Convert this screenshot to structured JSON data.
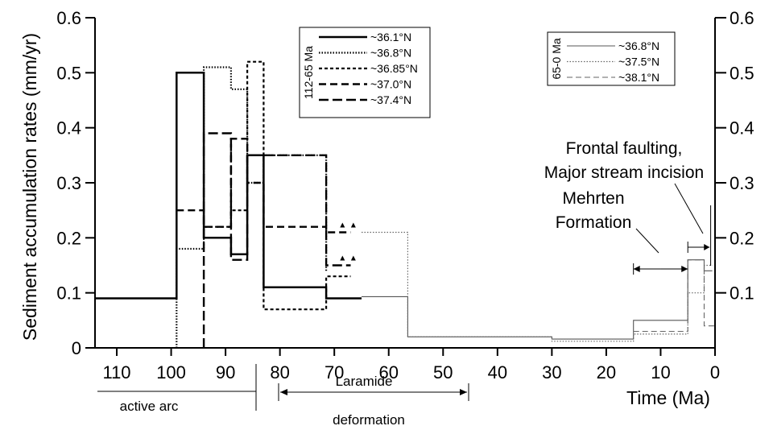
{
  "chart_data": {
    "type": "line",
    "subtype": "step",
    "xlabel": "Time (Ma)",
    "ylabel": "Sediment accumulation rates (mm/yr)",
    "xlim": [
      114,
      0
    ],
    "ylim": [
      0,
      0.6
    ],
    "x_reversed": true,
    "xticks": [
      110,
      100,
      90,
      80,
      70,
      60,
      50,
      40,
      30,
      20,
      10,
      0
    ],
    "yticks_left": [
      "0",
      "0.1",
      "0.2",
      "0.3",
      "0.4",
      "0.5",
      "0.6"
    ],
    "yticks_right": [
      "0.1",
      "0.2",
      "0.3",
      "0.4",
      "0.5",
      "0.6"
    ],
    "legend_112_65": {
      "title": "112-65 Ma",
      "position": "top-center",
      "entries": [
        "~36.1°N",
        "~36.8°N",
        "~36.85°N",
        "~37.0°N",
        "~37.4°N"
      ]
    },
    "legend_65_0": {
      "title": "65-0 Ma",
      "position": "top-right",
      "entries": [
        "~36.8°N",
        "~37.5°N",
        "~38.1°N"
      ]
    },
    "series": [
      {
        "name": "~36.1°N",
        "style": "solid-thick",
        "points": [
          [
            114,
            0.09
          ],
          [
            99,
            0.09
          ],
          [
            99,
            0.5
          ],
          [
            94,
            0.5
          ],
          [
            94,
            0.2
          ],
          [
            89,
            0.2
          ],
          [
            89,
            0.17
          ],
          [
            86,
            0.17
          ],
          [
            86,
            0.35
          ],
          [
            83,
            0.35
          ],
          [
            83,
            0.11
          ],
          [
            71.5,
            0.11
          ],
          [
            71.5,
            0.09
          ],
          [
            65,
            0.09
          ]
        ]
      },
      {
        "name": "~36.8°N",
        "style": "dotted",
        "points": [
          [
            99,
            0
          ],
          [
            99,
            0.18
          ],
          [
            94,
            0.18
          ],
          [
            94,
            0.51
          ],
          [
            89,
            0.51
          ],
          [
            89,
            0.47
          ],
          [
            86,
            0.47
          ],
          [
            86,
            0.3
          ],
          [
            83,
            0.3
          ],
          [
            83,
            0.35
          ],
          [
            71.5,
            0.35
          ],
          [
            71.5,
            0.14
          ]
        ]
      },
      {
        "name": "~36.85°N",
        "style": "short-dash",
        "points": [
          [
            94,
            0.22
          ],
          [
            89,
            0.22
          ],
          [
            89,
            0.25
          ],
          [
            86,
            0.25
          ],
          [
            86,
            0.52
          ],
          [
            83,
            0.52
          ],
          [
            83,
            0.07
          ],
          [
            71.5,
            0.07
          ],
          [
            71.5,
            0.13
          ],
          [
            67,
            0.13
          ]
        ]
      },
      {
        "name": "~37.0°N",
        "style": "dash",
        "points": [
          [
            99,
            0.25
          ],
          [
            94,
            0.25
          ],
          [
            94,
            0.22
          ],
          [
            89,
            0.22
          ],
          [
            89,
            0.38
          ],
          [
            86,
            0.38
          ],
          [
            86,
            0.3
          ],
          [
            83,
            0.3
          ],
          [
            83,
            0.22
          ],
          [
            71.5,
            0.22
          ],
          [
            71.5,
            0.21
          ],
          [
            67,
            0.21
          ]
        ]
      },
      {
        "name": "~37.4°N",
        "style": "long-dash",
        "points": [
          [
            94,
            0
          ],
          [
            94,
            0.39
          ],
          [
            89,
            0.39
          ],
          [
            89,
            0.16
          ],
          [
            86,
            0.16
          ],
          [
            86,
            0.35
          ],
          [
            83,
            0.35
          ],
          [
            71.5,
            0.35
          ],
          [
            71.5,
            0.15
          ],
          [
            67,
            0.15
          ]
        ]
      },
      {
        "name": "~36.8°N",
        "style": "thin-solid",
        "points": [
          [
            65,
            0.093
          ],
          [
            56.5,
            0.093
          ],
          [
            56.5,
            0.02
          ],
          [
            30,
            0.02
          ],
          [
            30,
            0.016
          ],
          [
            15,
            0.016
          ],
          [
            15,
            0.05
          ],
          [
            5,
            0.05
          ],
          [
            5,
            0.16
          ],
          [
            2,
            0.16
          ],
          [
            2,
            0.14
          ],
          [
            0.5,
            0.14
          ]
        ]
      },
      {
        "name": "~37.5°N",
        "style": "thin-dotted",
        "points": [
          [
            65,
            0.21
          ],
          [
            56.5,
            0.21
          ],
          [
            56.5,
            0.02
          ],
          [
            30,
            0.02
          ],
          [
            30,
            0.012
          ],
          [
            15,
            0.012
          ],
          [
            15,
            0.025
          ],
          [
            5,
            0.025
          ],
          [
            5,
            0.1
          ],
          [
            2,
            0.1
          ],
          [
            2,
            0.15
          ],
          [
            0.5,
            0.15
          ]
        ]
      },
      {
        "name": "~38.1°N",
        "style": "thin-dash",
        "points": [
          [
            15,
            0.03
          ],
          [
            5,
            0.03
          ],
          [
            5,
            0.16
          ],
          [
            2,
            0.16
          ],
          [
            2,
            0.04
          ],
          [
            0,
            0.04
          ]
        ]
      }
    ],
    "annotations": {
      "frontal": [
        "Frontal faulting,",
        "Major stream incision"
      ],
      "mehrten": [
        "Mehrten",
        "Formation"
      ],
      "active_arc": "active arc",
      "laramide": [
        "Laramide",
        "deformation"
      ]
    }
  }
}
